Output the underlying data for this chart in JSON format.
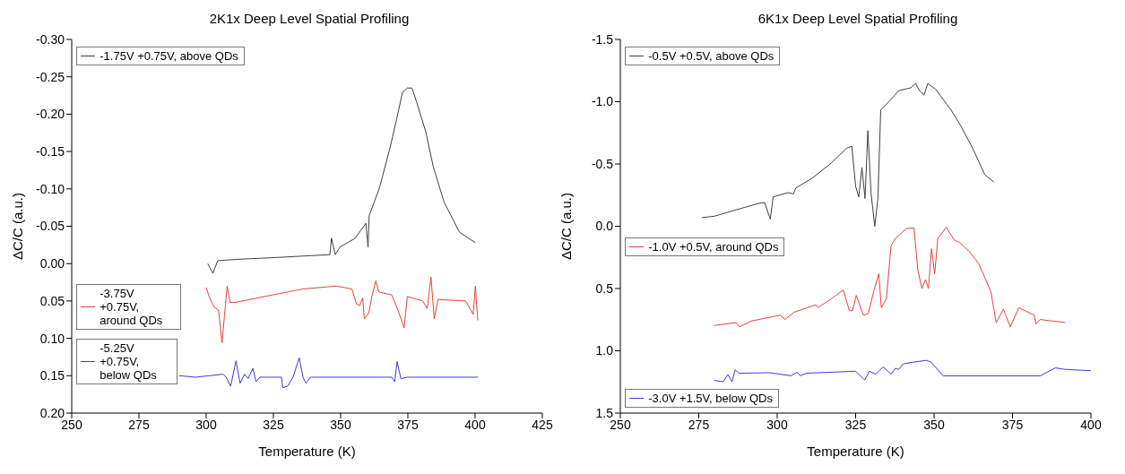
{
  "chart_data": [
    {
      "type": "line",
      "title": "2K1x Deep Level Spatial Profiling",
      "xlabel": "Temperature (K)",
      "ylabel": "ΔC/C (a.u.)",
      "xlim": [
        250,
        425
      ],
      "xticks": [
        250,
        275,
        300,
        325,
        350,
        375,
        400,
        425
      ],
      "ylim": [
        0.2,
        -0.3
      ],
      "yticks": [
        {
          "value": -0.3,
          "label": "-0.30"
        },
        {
          "value": -0.25,
          "label": "-0.25"
        },
        {
          "value": -0.2,
          "label": "-0.20"
        },
        {
          "value": -0.15,
          "label": "-0.15"
        },
        {
          "value": -0.1,
          "label": "-0.10"
        },
        {
          "value": -0.05,
          "label": "-0.05"
        },
        {
          "value": 0,
          "label": "0.00"
        },
        {
          "value": 0.05,
          "label": "0.05"
        },
        {
          "value": 0.1,
          "label": "0.10"
        },
        {
          "value": 0.15,
          "label": "0.15"
        },
        {
          "value": 0.2,
          "label": "0.20"
        }
      ],
      "legend": "left",
      "marker": "none",
      "line_style": "solid",
      "series": [
        {
          "name": "-1.75V +0.75V, above QDs",
          "color": "#404040",
          "x": [
            300.6,
            302.5,
            304.3,
            313,
            325,
            346,
            346.6,
            348,
            349.7,
            355.4,
            359.4,
            360.2,
            360.6,
            364.5,
            368.5,
            370.8,
            373,
            374.8,
            376.5,
            378.2,
            381.6,
            384.5,
            388.5,
            394.2,
            400.1
          ],
          "values": [
            0.0,
            0.013,
            -0.004,
            -0.006,
            -0.008,
            -0.012,
            -0.034,
            -0.012,
            -0.022,
            -0.034,
            -0.054,
            -0.022,
            -0.064,
            -0.102,
            -0.157,
            -0.193,
            -0.229,
            -0.235,
            -0.235,
            -0.217,
            -0.177,
            -0.129,
            -0.082,
            -0.042,
            -0.028
          ]
        },
        {
          "name": "-3.75V +0.75V, around QDs",
          "color": "#e8413c",
          "x": [
            300,
            301.1,
            302.9,
            304.6,
            305.9,
            306.8,
            307.8,
            308.9,
            310.8,
            324.5,
            335.9,
            348.5,
            354.2,
            355.9,
            357.1,
            358.2,
            358.8,
            360.5,
            361.6,
            363.1,
            364.2,
            369,
            371.3,
            373.6,
            374.8,
            380.5,
            382.2,
            383.6,
            384.8,
            386.2,
            396.5,
            399.3,
            400.1,
            401
          ],
          "values": [
            0.032,
            0.044,
            0.058,
            0.062,
            0.106,
            0.07,
            0.03,
            0.052,
            0.052,
            0.042,
            0.034,
            0.03,
            0.034,
            0.054,
            0.056,
            0.046,
            0.074,
            0.066,
            0.044,
            0.023,
            0.038,
            0.042,
            0.062,
            0.086,
            0.044,
            0.05,
            0.06,
            0.018,
            0.074,
            0.048,
            0.05,
            0.068,
            0.03,
            0.076
          ]
        },
        {
          "name": "-5.25V +0.75V, below QDs",
          "color": "#3b3bdc",
          "x": [
            290,
            296,
            306.3,
            307.4,
            309.1,
            311.1,
            312.6,
            314.3,
            315.6,
            317.4,
            318.5,
            320,
            328,
            328.5,
            330.3,
            332.3,
            334.6,
            336,
            337.1,
            338.8,
            369,
            370.1,
            371,
            372.4,
            374.8,
            401
          ],
          "values": [
            0.15,
            0.152,
            0.148,
            0.152,
            0.164,
            0.13,
            0.16,
            0.148,
            0.154,
            0.14,
            0.158,
            0.152,
            0.152,
            0.166,
            0.164,
            0.152,
            0.126,
            0.152,
            0.16,
            0.152,
            0.152,
            0.158,
            0.131,
            0.154,
            0.152,
            0.152
          ]
        }
      ]
    },
    {
      "type": "line",
      "title": "6K1x Deep Level Spatial Profiling",
      "xlabel": "Temperature (K)",
      "ylabel": "ΔC/C (a.u.)",
      "xlim": [
        250,
        400
      ],
      "xticks": [
        250,
        275,
        300,
        325,
        350,
        375,
        400
      ],
      "ylim": [
        1.5,
        -1.5
      ],
      "yticks": [
        {
          "value": -1.5,
          "label": "-1.5"
        },
        {
          "value": -1,
          "label": "-1.0"
        },
        {
          "value": -0.5,
          "label": "-0.5"
        },
        {
          "value": 0,
          "label": "0.0"
        },
        {
          "value": 0.5,
          "label": "0.5"
        },
        {
          "value": 1,
          "label": "1.0"
        },
        {
          "value": 1.5,
          "label": "1.5"
        }
      ],
      "legend": "left",
      "marker": "none",
      "line_style": "solid",
      "series": [
        {
          "name": "-0.5V +0.5V, above QDs",
          "color": "#404040",
          "x": [
            276,
            279.9,
            289.7,
            294.6,
            296,
            297.8,
            298.7,
            303.4,
            305.2,
            305.9,
            311.3,
            317.2,
            322.1,
            323.8,
            325,
            326,
            327,
            328,
            328.9,
            329.9,
            331.1,
            332.1,
            333,
            335.8,
            338.7,
            342.6,
            344.1,
            345.4,
            346.8,
            348,
            350.5,
            355.4,
            358.3,
            362.3,
            366.2,
            369.1
          ],
          "values": [
            -0.07,
            -0.08,
            -0.152,
            -0.187,
            -0.19,
            -0.057,
            -0.235,
            -0.27,
            -0.26,
            -0.306,
            -0.389,
            -0.507,
            -0.626,
            -0.642,
            -0.32,
            -0.235,
            -0.472,
            -0.223,
            -0.768,
            -0.27,
            0.002,
            -0.223,
            -0.934,
            -1.005,
            -1.088,
            -1.112,
            -1.147,
            -1.088,
            -1.053,
            -1.147,
            -1.1,
            -0.934,
            -0.816,
            -0.626,
            -0.413,
            -0.354
          ]
        },
        {
          "name": "-1.0V +0.5V, around QDs",
          "color": "#e8413c",
          "x": [
            279.9,
            286.8,
            288,
            291.7,
            301,
            302.5,
            305.4,
            312.3,
            313,
            317.2,
            321.1,
            323,
            324,
            325.2,
            327.5,
            329,
            330.9,
            332.4,
            333.2,
            334.8,
            336.3,
            337.7,
            341.2,
            343.6,
            344.8,
            346.1,
            347.3,
            348.2,
            349.2,
            350.2,
            351.2,
            353.9,
            356.4,
            358.3,
            361.3,
            364.2,
            368.1,
            369.8,
            372.1,
            374.3,
            377,
            381.9,
            382.5,
            383.8,
            391.7
          ],
          "values": [
            0.797,
            0.773,
            0.808,
            0.761,
            0.714,
            0.749,
            0.69,
            0.631,
            0.654,
            0.583,
            0.512,
            0.678,
            0.678,
            0.555,
            0.714,
            0.702,
            0.512,
            0.382,
            0.654,
            0.583,
            0.156,
            0.097,
            0.019,
            0.014,
            0.346,
            0.5,
            0.429,
            0.5,
            0.18,
            0.382,
            0.097,
            0.009,
            0.109,
            0.133,
            0.204,
            0.299,
            0.524,
            0.773,
            0.666,
            0.808,
            0.654,
            0.714,
            0.785,
            0.749,
            0.773
          ]
        },
        {
          "name": "-3.0V +1.5V, below QDs",
          "color": "#3b3bdc",
          "x": [
            279.9,
            282.8,
            284.3,
            285.6,
            286.6,
            287.8,
            297.5,
            304.4,
            306.4,
            307.3,
            309.3,
            325,
            327.9,
            329.4,
            331.4,
            333.8,
            336.3,
            337.7,
            338.7,
            340.2,
            342.6,
            347.5,
            349,
            352.9,
            383.8,
            388.7,
            391.7,
            400
          ],
          "values": [
            1.237,
            1.249,
            1.19,
            1.249,
            1.152,
            1.18,
            1.176,
            1.2,
            1.171,
            1.2,
            1.18,
            1.164,
            1.235,
            1.164,
            1.187,
            1.129,
            1.187,
            1.14,
            1.15,
            1.106,
            1.094,
            1.077,
            1.09,
            1.201,
            1.201,
            1.137,
            1.149,
            1.16
          ]
        }
      ]
    }
  ]
}
